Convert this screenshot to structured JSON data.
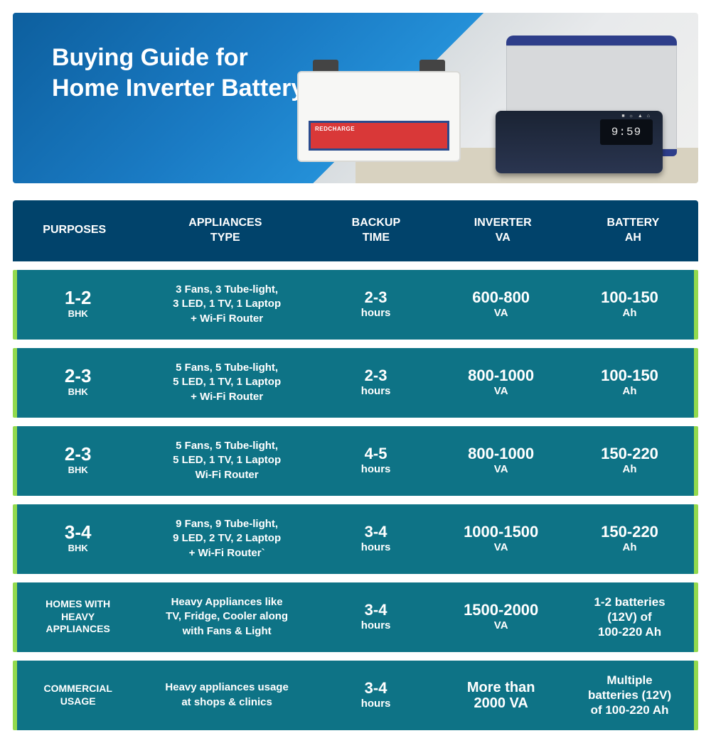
{
  "hero": {
    "title": "Buying Guide for Home Inverter Battery",
    "battery_brand": "REDCHARGE",
    "inverter_display": "9:59",
    "colors": {
      "gradient_start": "#0d5f9e",
      "gradient_mid": "#2490d8",
      "wall": "#e8eaec",
      "floor": "#d8d2c0",
      "battery_body": "#f7f7f5",
      "battery_label_bg": "#d93838",
      "battery_label_border": "#2a4b8d",
      "trolley_body": "#d7d9db",
      "trolley_trim": "#2e3e8a",
      "inverter_body": "#1a2333"
    }
  },
  "table": {
    "colors": {
      "header_bg": "#01436b",
      "row_bg": "#0e7386",
      "accent_border": "#93d94e",
      "text": "#ffffff"
    },
    "column_widths_pct": [
      18,
      26,
      18,
      19,
      19
    ],
    "columns": [
      {
        "line1": "PURPOSES",
        "line2": ""
      },
      {
        "line1": "APPLIANCES",
        "line2": "TYPE"
      },
      {
        "line1": "BACKUP",
        "line2": "TIME"
      },
      {
        "line1": "INVERTER",
        "line2": "VA"
      },
      {
        "line1": "BATTERY",
        "line2": "AH"
      }
    ],
    "rows": [
      {
        "purpose": {
          "value": "1-2",
          "sub": "BHK",
          "style": "big"
        },
        "appliances": "3 Fans, 3 Tube-light,\n3 LED, 1 TV, 1 Laptop\n+ Wi-Fi Router",
        "backup": {
          "value": "2-3",
          "unit": "hours"
        },
        "inverter": {
          "value": "600-800",
          "unit": "VA"
        },
        "battery": {
          "value": "100-150",
          "unit": "Ah",
          "style": "std"
        }
      },
      {
        "purpose": {
          "value": "2-3",
          "sub": "BHK",
          "style": "big"
        },
        "appliances": "5 Fans, 5 Tube-light,\n5 LED, 1 TV, 1 Laptop\n+ Wi-Fi Router",
        "backup": {
          "value": "2-3",
          "unit": "hours"
        },
        "inverter": {
          "value": "800-1000",
          "unit": "VA"
        },
        "battery": {
          "value": "100-150",
          "unit": "Ah",
          "style": "std"
        }
      },
      {
        "purpose": {
          "value": "2-3",
          "sub": "BHK",
          "style": "big"
        },
        "appliances": "5 Fans, 5 Tube-light,\n5 LED, 1 TV, 1 Laptop\nWi-Fi Router",
        "backup": {
          "value": "4-5",
          "unit": "hours"
        },
        "inverter": {
          "value": "800-1000",
          "unit": "VA"
        },
        "battery": {
          "value": "150-220",
          "unit": "Ah",
          "style": "std"
        }
      },
      {
        "purpose": {
          "value": "3-4",
          "sub": "BHK",
          "style": "big"
        },
        "appliances": "9 Fans, 9 Tube-light,\n9 LED, 2 TV, 2 Laptop\n+ Wi-Fi Router`",
        "backup": {
          "value": "3-4",
          "unit": "hours"
        },
        "inverter": {
          "value": "1000-1500",
          "unit": "VA"
        },
        "battery": {
          "value": "150-220",
          "unit": "Ah",
          "style": "std"
        }
      },
      {
        "purpose": {
          "value": "HOMES WITH\nHEAVY\nAPPLIANCES",
          "sub": "",
          "style": "label"
        },
        "appliances": "Heavy Appliances like\nTV, Fridge, Cooler along\nwith Fans & Light",
        "backup": {
          "value": "3-4",
          "unit": "hours"
        },
        "inverter": {
          "value": "1500-2000",
          "unit": "VA"
        },
        "battery": {
          "value": "1-2 batteries\n(12V) of\n100-220 Ah",
          "unit": "",
          "style": "multi"
        }
      },
      {
        "purpose": {
          "value": "COMMERCIAL\nUSAGE",
          "sub": "",
          "style": "label"
        },
        "appliances": "Heavy appliances usage\nat shops & clinics",
        "backup": {
          "value": "3-4",
          "unit": "hours"
        },
        "inverter": {
          "value": "More than\n2000 VA",
          "unit": ""
        },
        "battery": {
          "value": "Multiple\nbatteries (12V)\nof 100-220 Ah",
          "unit": "",
          "style": "multi"
        }
      }
    ]
  }
}
